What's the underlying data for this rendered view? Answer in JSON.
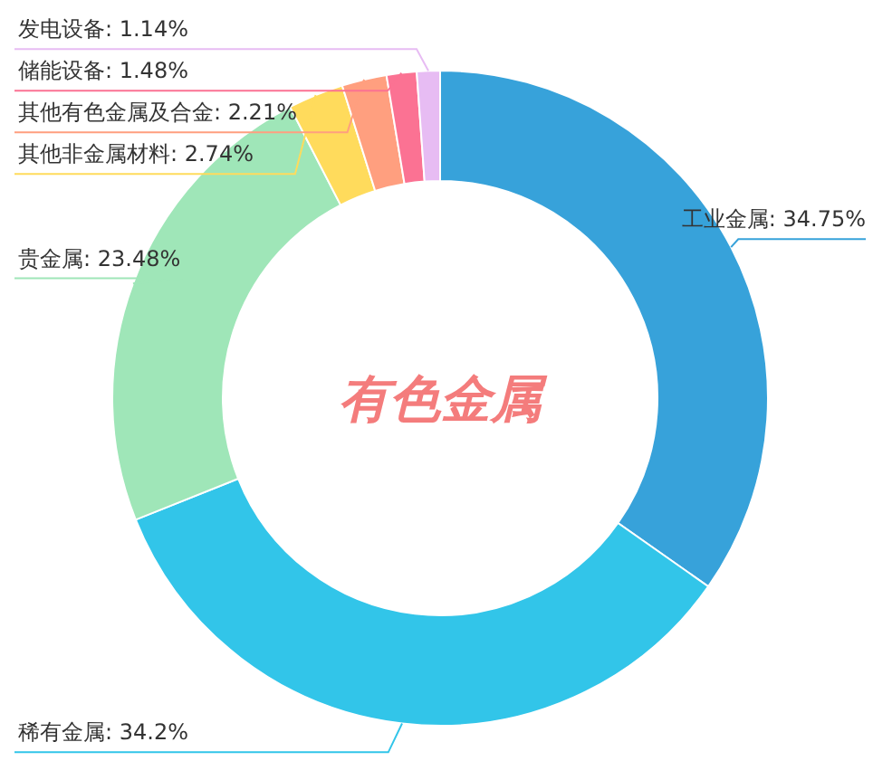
{
  "chart_data": {
    "type": "donut",
    "title": "有色金属",
    "categories": [
      "工业金属",
      "稀有金属",
      "贵金属",
      "其他非金属材料",
      "其他有色金属及合金",
      "储能设备",
      "发电设备"
    ],
    "values": [
      34.75,
      34.2,
      23.48,
      2.74,
      2.21,
      1.48,
      1.14
    ],
    "value_labels": [
      ": 34.75%",
      ": 34.2%",
      ": 23.48%",
      ": 2.74%",
      ": 2.21%",
      ": 1.48%",
      ": 1.14%"
    ],
    "colors": [
      "#37a2da",
      "#32c5e9",
      "#9fe6b8",
      "#ffdb5c",
      "#ff9f7f",
      "#fb7293",
      "#e7bcf3"
    ]
  }
}
